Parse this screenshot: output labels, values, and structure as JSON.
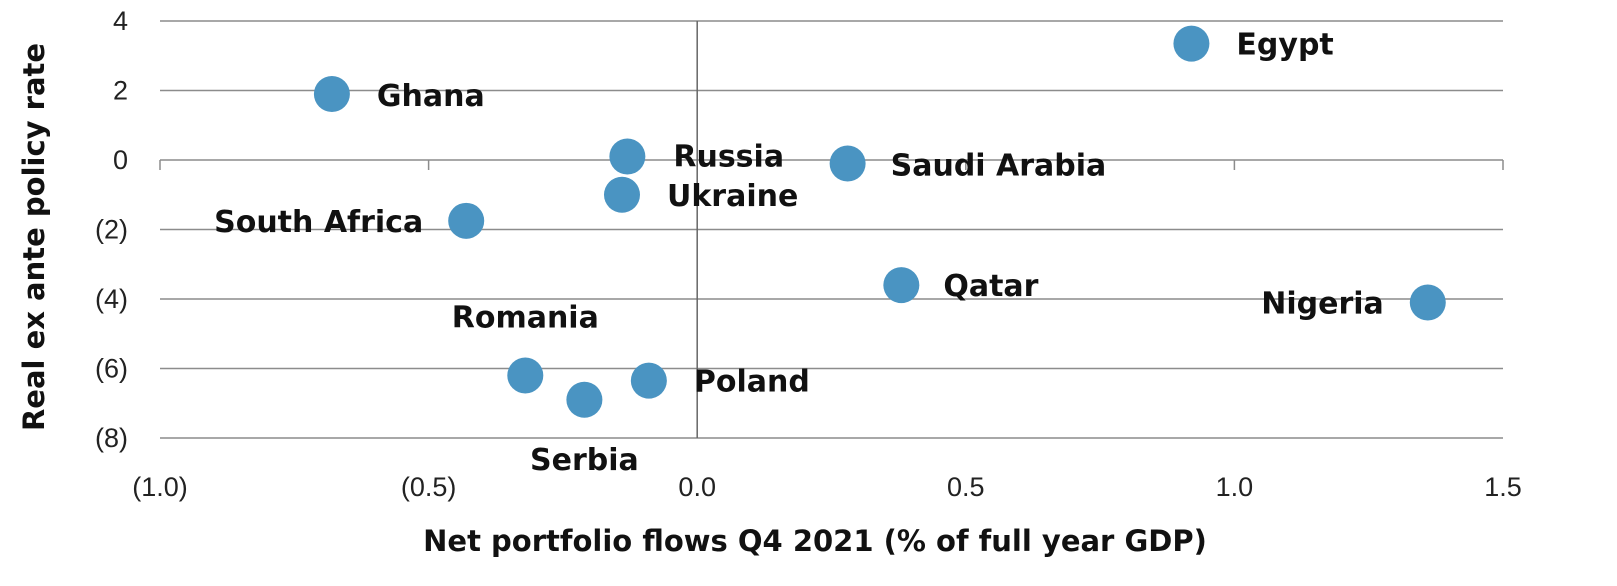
{
  "chart_data": {
    "type": "scatter",
    "title": "",
    "xlabel": "Net portfolio flows Q4 2021 (% of full year GDP)",
    "ylabel": "Real ex ante policy rate",
    "xlim": [
      -1.0,
      1.5
    ],
    "ylim": [
      -8,
      4
    ],
    "x_ticks": [
      {
        "value": -1.0,
        "label": "(1.0)"
      },
      {
        "value": -0.5,
        "label": "(0.5)"
      },
      {
        "value": 0.0,
        "label": "0.0"
      },
      {
        "value": 0.5,
        "label": "0.5"
      },
      {
        "value": 1.0,
        "label": "1.0"
      },
      {
        "value": 1.5,
        "label": "1.5"
      }
    ],
    "y_ticks": [
      {
        "value": 4,
        "label": "4"
      },
      {
        "value": 2,
        "label": "2"
      },
      {
        "value": 0,
        "label": "0"
      },
      {
        "value": -2,
        "label": "(2)"
      },
      {
        "value": -4,
        "label": "(4)"
      },
      {
        "value": -6,
        "label": "(6)"
      },
      {
        "value": -8,
        "label": "(8)"
      }
    ],
    "grid": true,
    "marker_color": "#4a94c2",
    "points": [
      {
        "label": "Egypt",
        "x": 0.92,
        "y": 3.35
      },
      {
        "label": "Ghana",
        "x": -0.68,
        "y": 1.9
      },
      {
        "label": "Russia",
        "x": -0.13,
        "y": 0.1
      },
      {
        "label": "Saudi Arabia",
        "x": 0.28,
        "y": -0.1
      },
      {
        "label": "Ukraine",
        "x": -0.14,
        "y": -1.0
      },
      {
        "label": "South Africa",
        "x": -0.43,
        "y": -1.75
      },
      {
        "label": "Qatar",
        "x": 0.38,
        "y": -3.6
      },
      {
        "label": "Nigeria",
        "x": 1.36,
        "y": -4.1
      },
      {
        "label": "Romania",
        "x": -0.32,
        "y": -6.2
      },
      {
        "label": "Poland",
        "x": -0.09,
        "y": -6.35
      },
      {
        "label": "Serbia",
        "x": -0.21,
        "y": -6.9
      }
    ]
  }
}
